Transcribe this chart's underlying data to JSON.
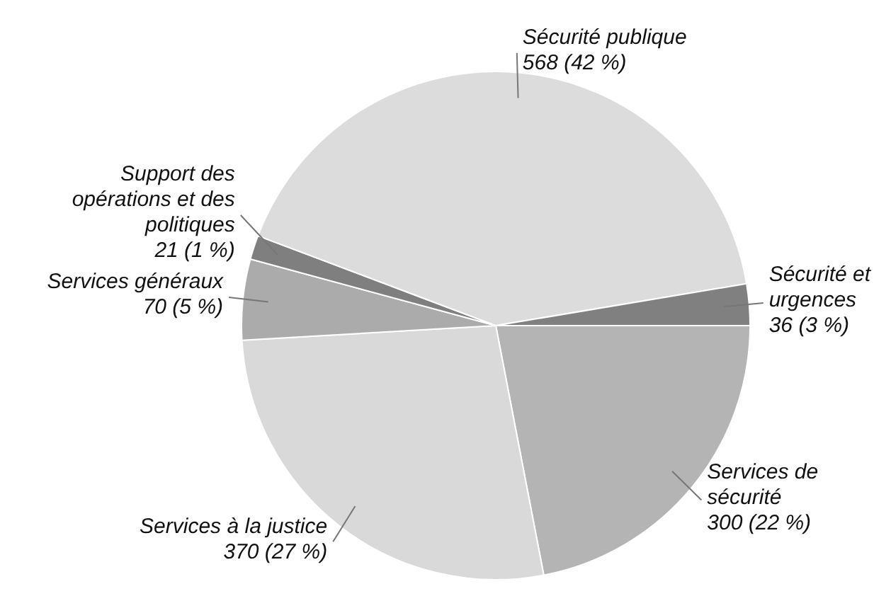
{
  "chart_data": {
    "type": "pie",
    "categories": [
      "Services de sécurité",
      "Services à la justice",
      "Services généraux",
      "Support des opérations et des politiques",
      "Sécurité publique",
      "Sécurité et urgences"
    ],
    "values": [
      300,
      370,
      70,
      21,
      568,
      36
    ],
    "colors": [
      "#b4b4b4",
      "#d9d9d9",
      "#ababab",
      "#7f7f7f",
      "#dcdcdc",
      "#808080"
    ],
    "value_labels": [
      "300 (22 %)",
      "370 (27 %)",
      "70 (5 %)",
      "21 (1 %)",
      "568 (42 %)",
      "36 (3 %)"
    ],
    "legend": false
  }
}
